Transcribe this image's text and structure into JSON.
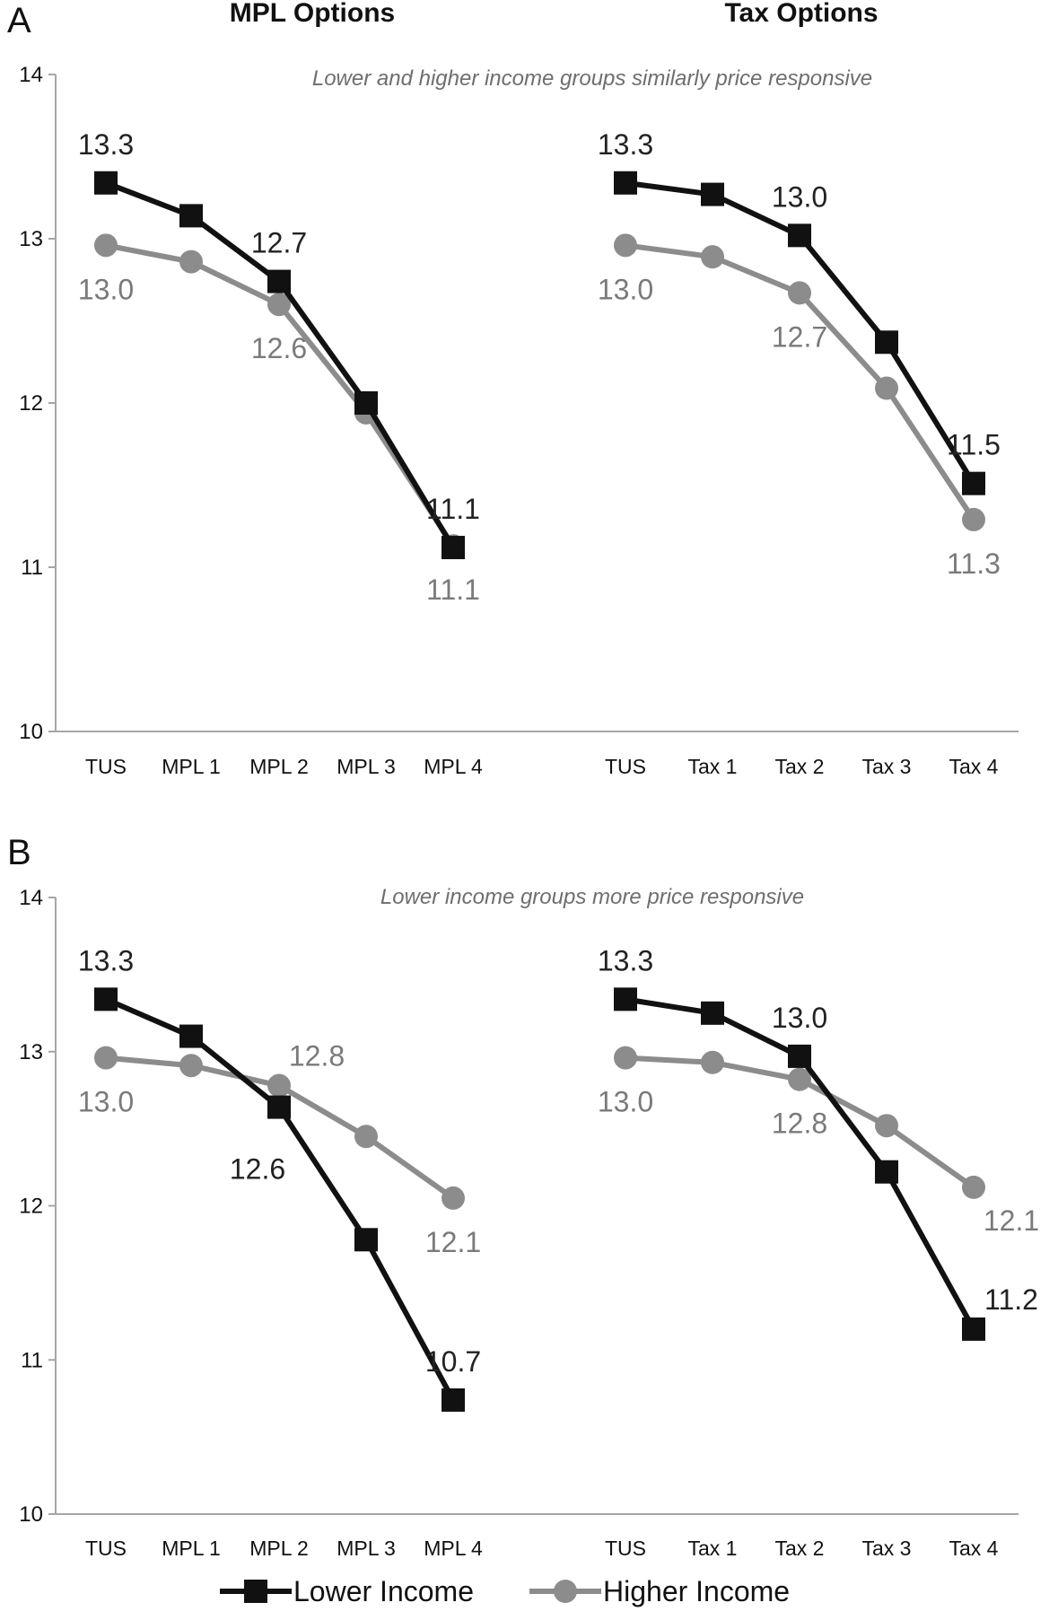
{
  "chart_data": [
    {
      "type": "line",
      "panel": "A",
      "column_titles": [
        "MPL Options",
        "Tax Options"
      ],
      "subtitle": "Lower and higher income groups similarly price responsive",
      "ylim": [
        10,
        14
      ],
      "yticks": [
        10,
        11,
        12,
        13,
        14
      ],
      "groups": [
        {
          "categories": [
            "TUS",
            "MPL 1",
            "MPL 2",
            "MPL 3",
            "MPL 4"
          ],
          "series": [
            {
              "name": "Lower Income",
              "values": [
                13.34,
                13.14,
                12.74,
                12.0,
                11.12
              ]
            },
            {
              "name": "Higher Income",
              "values": [
                12.96,
                12.86,
                12.6,
                11.94,
                11.13
              ]
            }
          ],
          "labels": [
            {
              "series": 0,
              "point": 0,
              "text": "13.3",
              "pos": "above"
            },
            {
              "series": 0,
              "point": 2,
              "text": "12.7",
              "pos": "above"
            },
            {
              "series": 0,
              "point": 4,
              "text": "11.1",
              "pos": "above"
            },
            {
              "series": 1,
              "point": 0,
              "text": "13.0",
              "pos": "below"
            },
            {
              "series": 1,
              "point": 2,
              "text": "12.6",
              "pos": "below"
            },
            {
              "series": 1,
              "point": 4,
              "text": "11.1",
              "pos": "below"
            }
          ]
        },
        {
          "categories": [
            "TUS",
            "Tax 1",
            "Tax 2",
            "Tax 3",
            "Tax 4"
          ],
          "series": [
            {
              "name": "Lower Income",
              "values": [
                13.34,
                13.27,
                13.02,
                12.37,
                11.51
              ]
            },
            {
              "name": "Higher Income",
              "values": [
                12.96,
                12.89,
                12.67,
                12.09,
                11.29
              ]
            }
          ],
          "labels": [
            {
              "series": 0,
              "point": 0,
              "text": "13.3",
              "pos": "above"
            },
            {
              "series": 0,
              "point": 2,
              "text": "13.0",
              "pos": "above"
            },
            {
              "series": 0,
              "point": 4,
              "text": "11.5",
              "pos": "above"
            },
            {
              "series": 1,
              "point": 0,
              "text": "13.0",
              "pos": "below"
            },
            {
              "series": 1,
              "point": 2,
              "text": "12.7",
              "pos": "below"
            },
            {
              "series": 1,
              "point": 4,
              "text": "11.3",
              "pos": "below"
            }
          ]
        }
      ]
    },
    {
      "type": "line",
      "panel": "B",
      "subtitle": "Lower income groups more price responsive",
      "ylim": [
        10,
        14
      ],
      "yticks": [
        10,
        11,
        12,
        13,
        14
      ],
      "groups": [
        {
          "categories": [
            "TUS",
            "MPL 1",
            "MPL 2",
            "MPL 3",
            "MPL 4"
          ],
          "series": [
            {
              "name": "Lower Income",
              "values": [
                13.34,
                13.1,
                12.64,
                11.78,
                10.74
              ]
            },
            {
              "name": "Higher Income",
              "values": [
                12.96,
                12.91,
                12.78,
                12.45,
                12.05
              ]
            }
          ],
          "labels": [
            {
              "series": 0,
              "point": 0,
              "text": "13.3",
              "pos": "above"
            },
            {
              "series": 0,
              "point": 2,
              "text": "12.6",
              "pos": "below-left"
            },
            {
              "series": 0,
              "point": 4,
              "text": "10.7",
              "pos": "above"
            },
            {
              "series": 1,
              "point": 0,
              "text": "13.0",
              "pos": "below"
            },
            {
              "series": 1,
              "point": 2,
              "text": "12.8",
              "pos": "above-right"
            },
            {
              "series": 1,
              "point": 4,
              "text": "12.1",
              "pos": "below"
            }
          ]
        },
        {
          "categories": [
            "TUS",
            "Tax 1",
            "Tax 2",
            "Tax 3",
            "Tax 4"
          ],
          "series": [
            {
              "name": "Lower Income",
              "values": [
                13.34,
                13.25,
                12.97,
                12.22,
                11.2
              ]
            },
            {
              "name": "Higher Income",
              "values": [
                12.96,
                12.93,
                12.82,
                12.52,
                12.12
              ]
            }
          ],
          "labels": [
            {
              "series": 0,
              "point": 0,
              "text": "13.3",
              "pos": "above"
            },
            {
              "series": 0,
              "point": 2,
              "text": "13.0",
              "pos": "above"
            },
            {
              "series": 0,
              "point": 4,
              "text": "11.2",
              "pos": "above-right"
            },
            {
              "series": 1,
              "point": 0,
              "text": "13.0",
              "pos": "below"
            },
            {
              "series": 1,
              "point": 2,
              "text": "12.8",
              "pos": "below"
            },
            {
              "series": 1,
              "point": 4,
              "text": "12.1",
              "pos": "below-right"
            }
          ]
        }
      ]
    }
  ],
  "legend": {
    "items": [
      {
        "name": "Lower Income",
        "marker": "square",
        "color": "#111111"
      },
      {
        "name": "Higher Income",
        "marker": "circle",
        "color": "#8c8c8c"
      }
    ]
  },
  "colors": {
    "lower": "#111111",
    "higher": "#8c8c8c",
    "higher_label": "#7a7a7a",
    "lower_label": "#222222",
    "subtitle": "#6e6e6e",
    "axis": "#a6a6a6"
  }
}
